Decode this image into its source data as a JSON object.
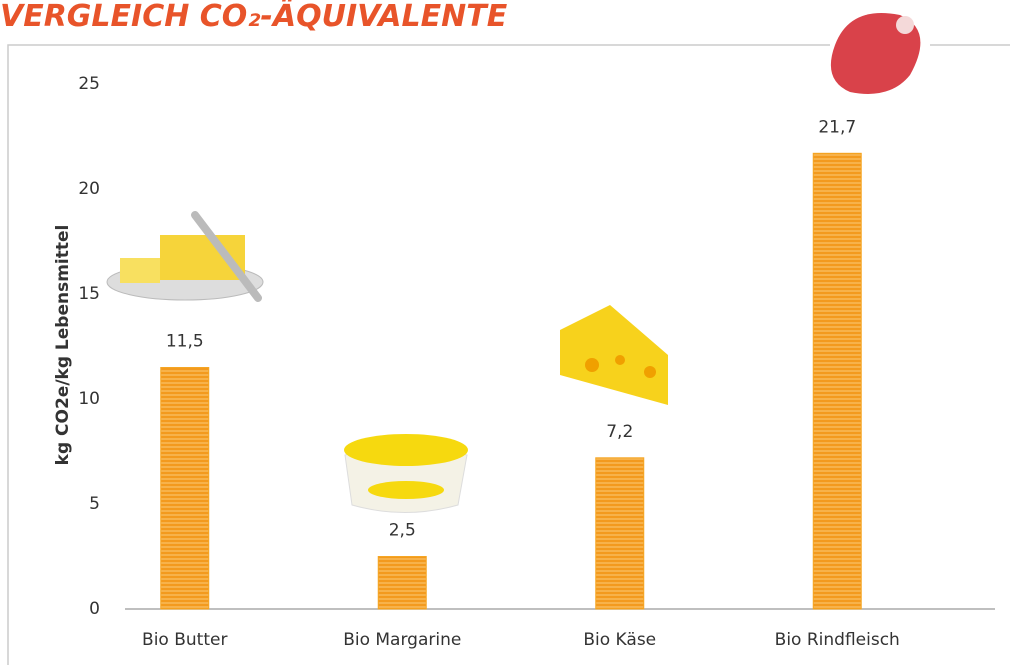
{
  "chart_data": {
    "type": "bar",
    "title": "VERGLEICH CO₂-ÄQUIVALENTE",
    "y_label": "kg CO2e/kg Lebensmittel",
    "categories": [
      "Bio Butter",
      "Bio Margarine",
      "Bio Käse",
      "Bio Rindfleisch"
    ],
    "values": [
      11.5,
      2.5,
      7.2,
      21.7
    ],
    "value_labels": [
      "11,5",
      "2,5",
      "7,2",
      "21,7"
    ],
    "color": "#f5a623",
    "ylim": [
      0,
      25
    ],
    "yticks": [
      0,
      5,
      10,
      15,
      20,
      25
    ],
    "grid": false
  }
}
